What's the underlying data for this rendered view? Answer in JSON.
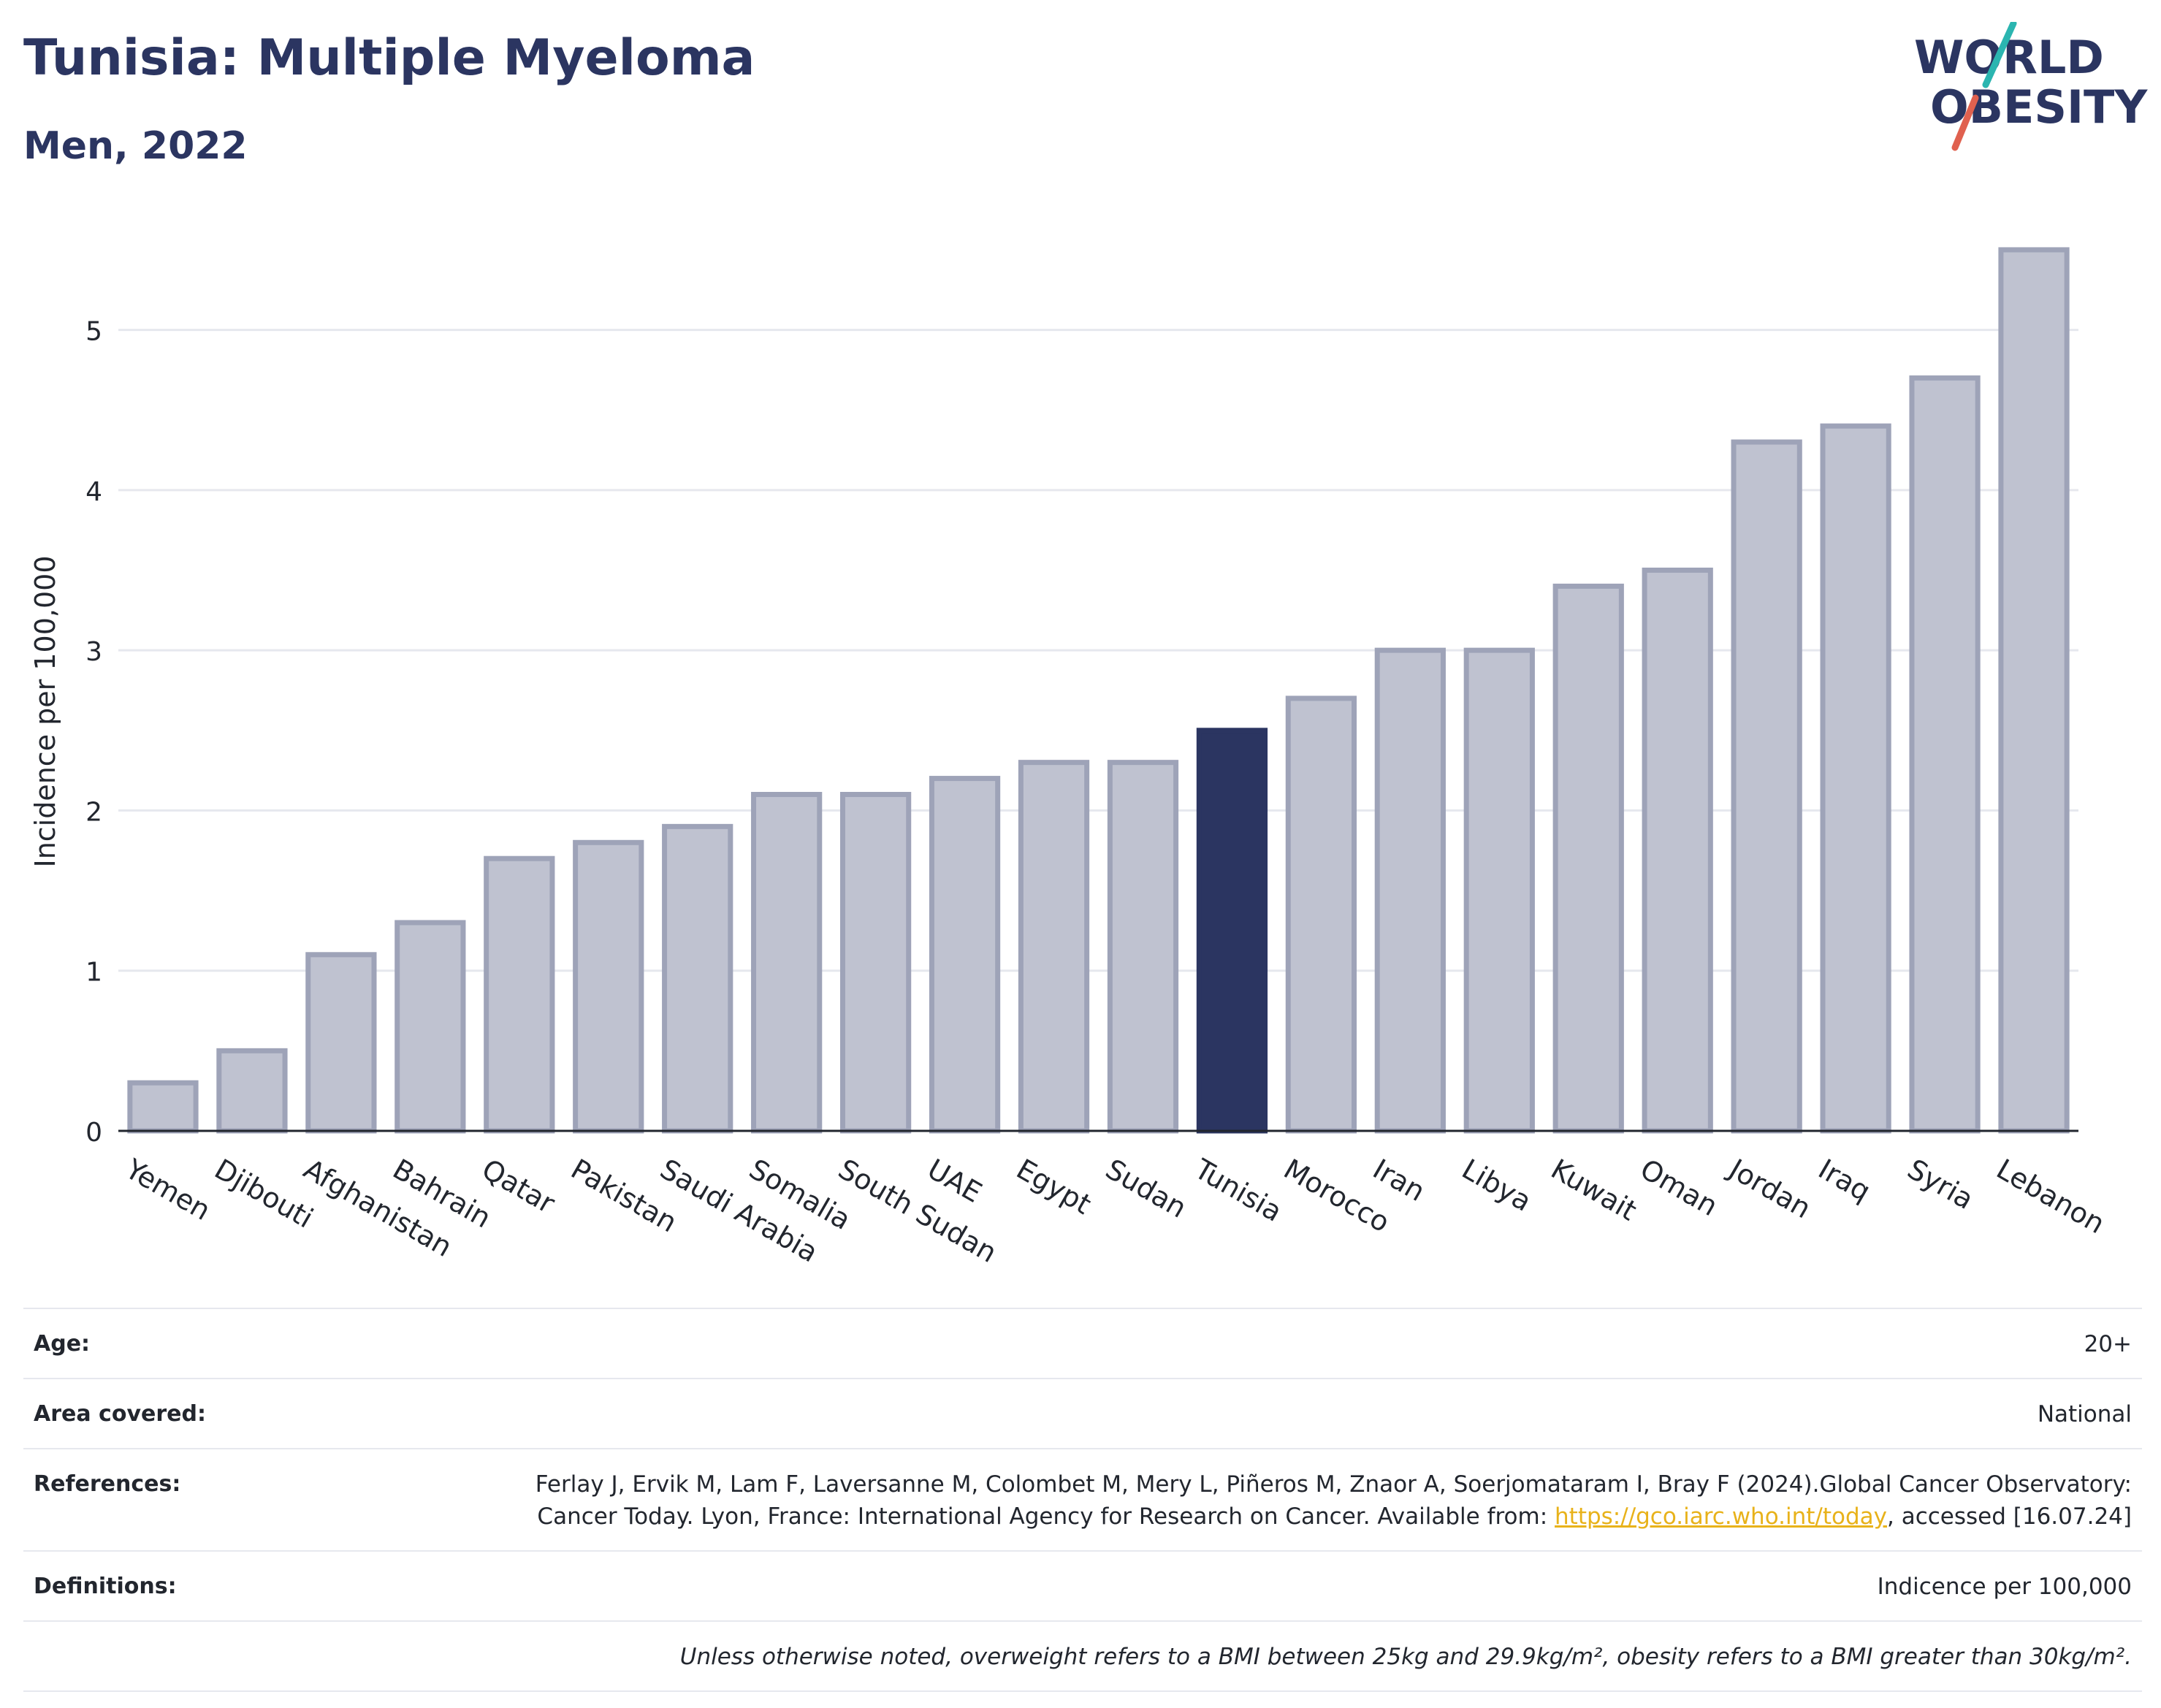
{
  "header": {
    "title": "Tunisia: Multiple Myeloma",
    "subtitle": "Men, 2022"
  },
  "logo": {
    "line1": "WORLD",
    "line2": "OBESITY",
    "colors": {
      "text": "#2b3561",
      "slash_teal": "#2bb5b0",
      "slash_red": "#e0614f"
    }
  },
  "chart_data": {
    "type": "bar",
    "categories": [
      "Yemen",
      "Djibouti",
      "Afghanistan",
      "Bahrain",
      "Qatar",
      "Pakistan",
      "Saudi Arabia",
      "Somalia",
      "South Sudan",
      "UAE",
      "Egypt",
      "Sudan",
      "Tunisia",
      "Morocco",
      "Iran",
      "Libya",
      "Kuwait",
      "Oman",
      "Jordan",
      "Iraq",
      "Syria",
      "Lebanon"
    ],
    "values": [
      0.3,
      0.5,
      1.1,
      1.3,
      1.7,
      1.8,
      1.9,
      2.1,
      2.1,
      2.2,
      2.3,
      2.3,
      2.5,
      2.7,
      3.0,
      3.0,
      3.4,
      3.5,
      4.3,
      4.4,
      4.7,
      5.5
    ],
    "highlight": "Tunisia",
    "ylabel": "Incidence per 100,000",
    "xlabel": "",
    "ylim": [
      0,
      5.6
    ],
    "yticks": [
      0,
      1,
      2,
      3,
      4,
      5
    ],
    "grid": true,
    "colors": {
      "bar": "#bfc2d0",
      "bar_border": "#9ea3b8",
      "highlight": "#2b3561",
      "grid": "#e6e8ee",
      "axis": "#22262e"
    }
  },
  "meta": {
    "age_label": "Age:",
    "age_value": "20+",
    "area_label": "Area covered:",
    "area_value": "National",
    "references_label": "References:",
    "references_text": "Ferlay J, Ervik M, Lam F, Laversanne M, Colombet M, Mery L, Piñeros M, Znaor A, Soerjomataram I, Bray F (2024).Global Cancer Observatory: Cancer Today. Lyon, France: International Agency for Research on Cancer. Available from: ",
    "references_link": "https://gco.iarc.who.int/today",
    "references_tail": ", accessed [16.07.24]",
    "definitions_label": "Definitions:",
    "definitions_value": "Indicence per 100,000",
    "note": "Unless otherwise noted, overweight refers to a BMI between 25kg and 29.9kg/m², obesity refers to a BMI greater than 30kg/m²."
  }
}
